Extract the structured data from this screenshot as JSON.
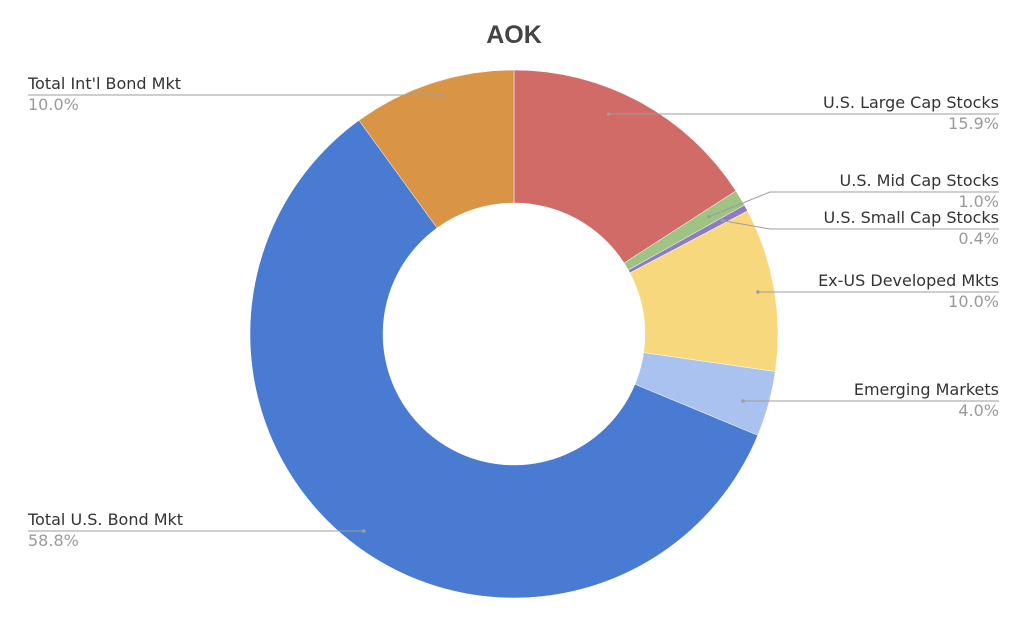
{
  "chart_data": {
    "type": "pie",
    "donut": true,
    "title": "AOK",
    "slices": [
      {
        "label": "U.S. Large Cap Stocks",
        "value": 15.9,
        "percent_label": "15.9%",
        "color": "#d16b67"
      },
      {
        "label": "U.S. Mid Cap Stocks",
        "value": 1.0,
        "percent_label": "1.0%",
        "color": "#9ec383"
      },
      {
        "label": "U.S. Small Cap Stocks",
        "value": 0.4,
        "percent_label": "0.4%",
        "color": "#8e7cc3"
      },
      {
        "label": "Ex-US Developed Mkts",
        "value": 10.0,
        "percent_label": "10.0%",
        "color": "#f8d87d"
      },
      {
        "label": "Emerging Markets",
        "value": 4.0,
        "percent_label": "4.0%",
        "color": "#a9c2f0"
      },
      {
        "label": "Total U.S. Bond Mkt",
        "value": 58.8,
        "percent_label": "58.8%",
        "color": "#4a7bd3"
      },
      {
        "label": "Total Int'l Bond Mkt",
        "value": 10.0,
        "percent_label": "10.0%",
        "color": "#d99446"
      }
    ],
    "start_angle": "top",
    "direction": "clockwise",
    "legend": "none (leader-line labels)"
  }
}
